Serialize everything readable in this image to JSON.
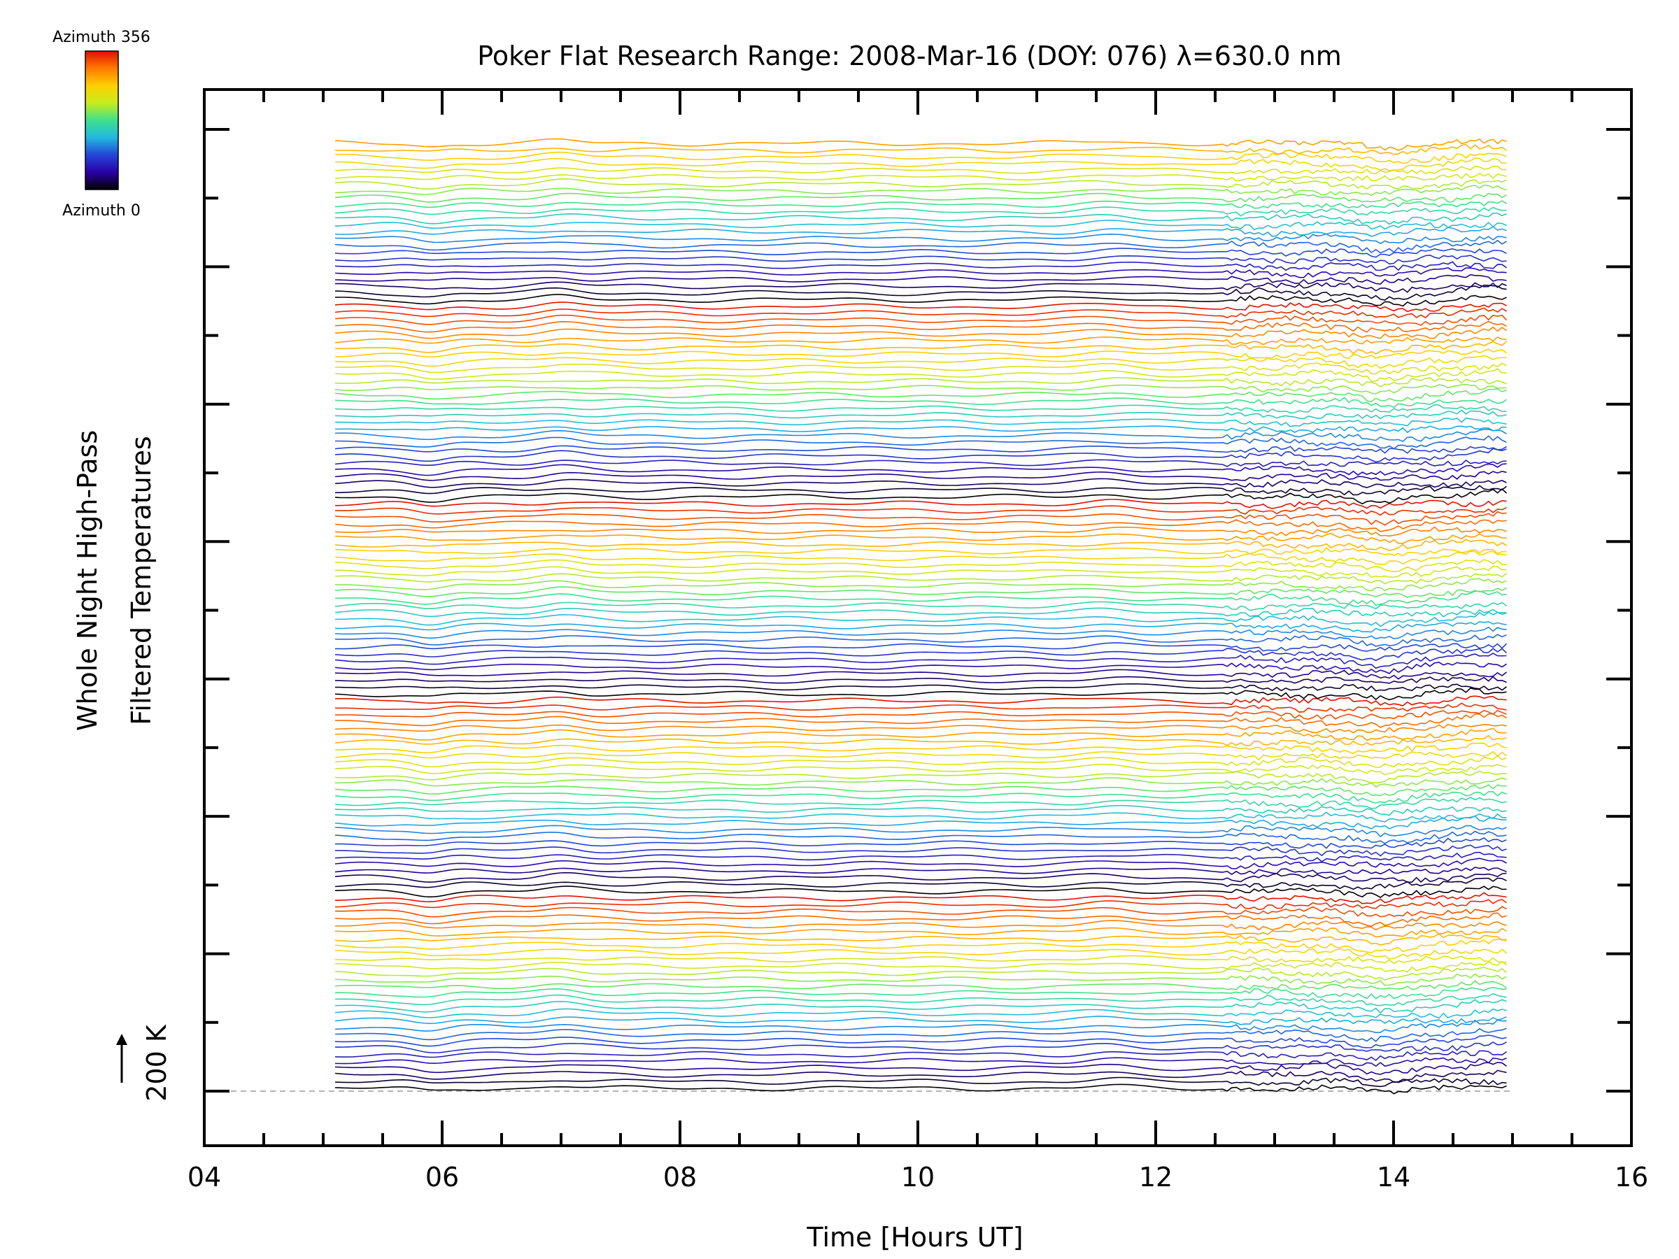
{
  "chart_data": {
    "type": "line",
    "title": "Poker Flat Research Range: 2008-Mar-16 (DOY: 076) λ=630.0 nm",
    "xlabel": "Time [Hours UT]",
    "ylabel": [
      "Whole Night High-Pass",
      "Filtered Temperatures"
    ],
    "xlim": [
      4,
      16
    ],
    "x_ticks": [
      "04",
      "06",
      "08",
      "10",
      "12",
      "14",
      "16"
    ],
    "x_range_data": [
      5.1,
      14.95
    ],
    "scale_label": "200 K",
    "n_traces": 140,
    "grid": false,
    "legend": {
      "type": "colorbar",
      "placement": "top-left",
      "top_label": "Azimuth 356",
      "bottom_label": "Azimuth 0",
      "colormap": [
        "#000000",
        "#2a00a8",
        "#2346d6",
        "#21b8e0",
        "#3ee08c",
        "#c8ec1c",
        "#ffd000",
        "#ff7a00",
        "#e01000"
      ]
    },
    "colors": {
      "frame": "#000000",
      "baseline": "#9a9a9a"
    }
  }
}
